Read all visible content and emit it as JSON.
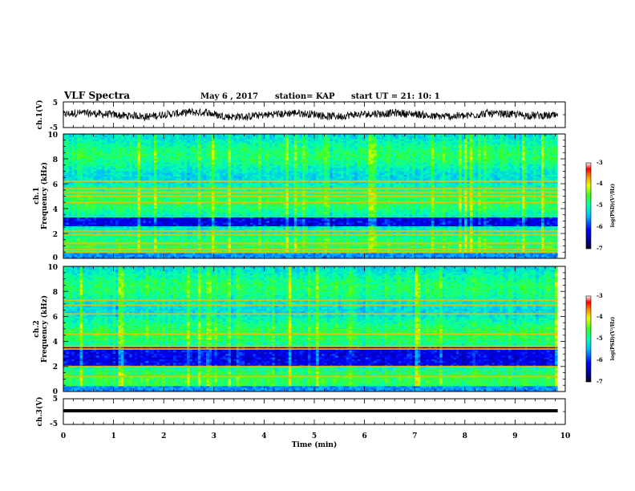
{
  "header": {
    "title": "VLF Spectra",
    "date": "May 6  , 2017",
    "station": "station= KAP",
    "start_time": "start  UT  =   21: 10: 1"
  },
  "chart_data": [
    {
      "type": "line",
      "panel": "ch1-waveform",
      "ylabel": "ch.1(V)",
      "xlim": [
        0,
        10
      ],
      "ylim": [
        -5,
        5
      ],
      "yticks": [
        "5",
        "-5"
      ],
      "description_values": {
        "mean": 0,
        "noise_amplitude": 1.5,
        "x_end": 9.85
      }
    },
    {
      "type": "heatmap",
      "panel": "ch1-spectrogram",
      "ylabel_line1": "ch.1",
      "ylabel_line2": "Frequency  (kHz)",
      "xlim": [
        0,
        10
      ],
      "ylim": [
        0,
        10
      ],
      "yticks": [
        "0",
        "2",
        "4",
        "6",
        "8",
        "10"
      ],
      "colorbar_label": "log(PSD)(V²/Hz)",
      "colorbar_ticks": [
        "-3",
        "-4",
        "-5",
        "-6",
        "-7"
      ],
      "zlim": [
        -7,
        -3
      ],
      "dark_band_khz": [
        2.6,
        3.3
      ],
      "line_tones_khz": [
        0.5,
        0.7,
        1.2,
        1.9,
        2.2,
        4.5,
        5.0,
        5.3,
        5.6,
        6.2
      ]
    },
    {
      "type": "heatmap",
      "panel": "ch2-spectrogram",
      "ylabel_line1": "ch.2",
      "ylabel_line2": "Frequency  (kHz)",
      "xlim": [
        0,
        10
      ],
      "ylim": [
        0,
        10
      ],
      "yticks": [
        "0",
        "2",
        "4",
        "6",
        "8",
        "10"
      ],
      "colorbar_label": "log(PSD)(V²/Hz)",
      "colorbar_ticks": [
        "-3",
        "-4",
        "-5",
        "-6",
        "-7"
      ],
      "zlim": [
        -7,
        -3
      ],
      "dark_band_khz": [
        2.0,
        3.5
      ],
      "line_tones_khz": [
        1.2,
        2.0,
        3.4,
        3.6,
        4.6,
        6.2,
        6.9,
        7.3
      ]
    },
    {
      "type": "line",
      "panel": "ch3-waveform",
      "ylabel": "ch.3(V)",
      "xlabel": "Time  (min)",
      "xlim": [
        0,
        10
      ],
      "ylim": [
        -5,
        5
      ],
      "yticks": [
        "5",
        "-5"
      ],
      "xticks": [
        "0",
        "1",
        "2",
        "3",
        "4",
        "5",
        "6",
        "7",
        "8",
        "9",
        "10"
      ],
      "description_values": {
        "level": 0,
        "x_end": 9.85
      }
    }
  ]
}
